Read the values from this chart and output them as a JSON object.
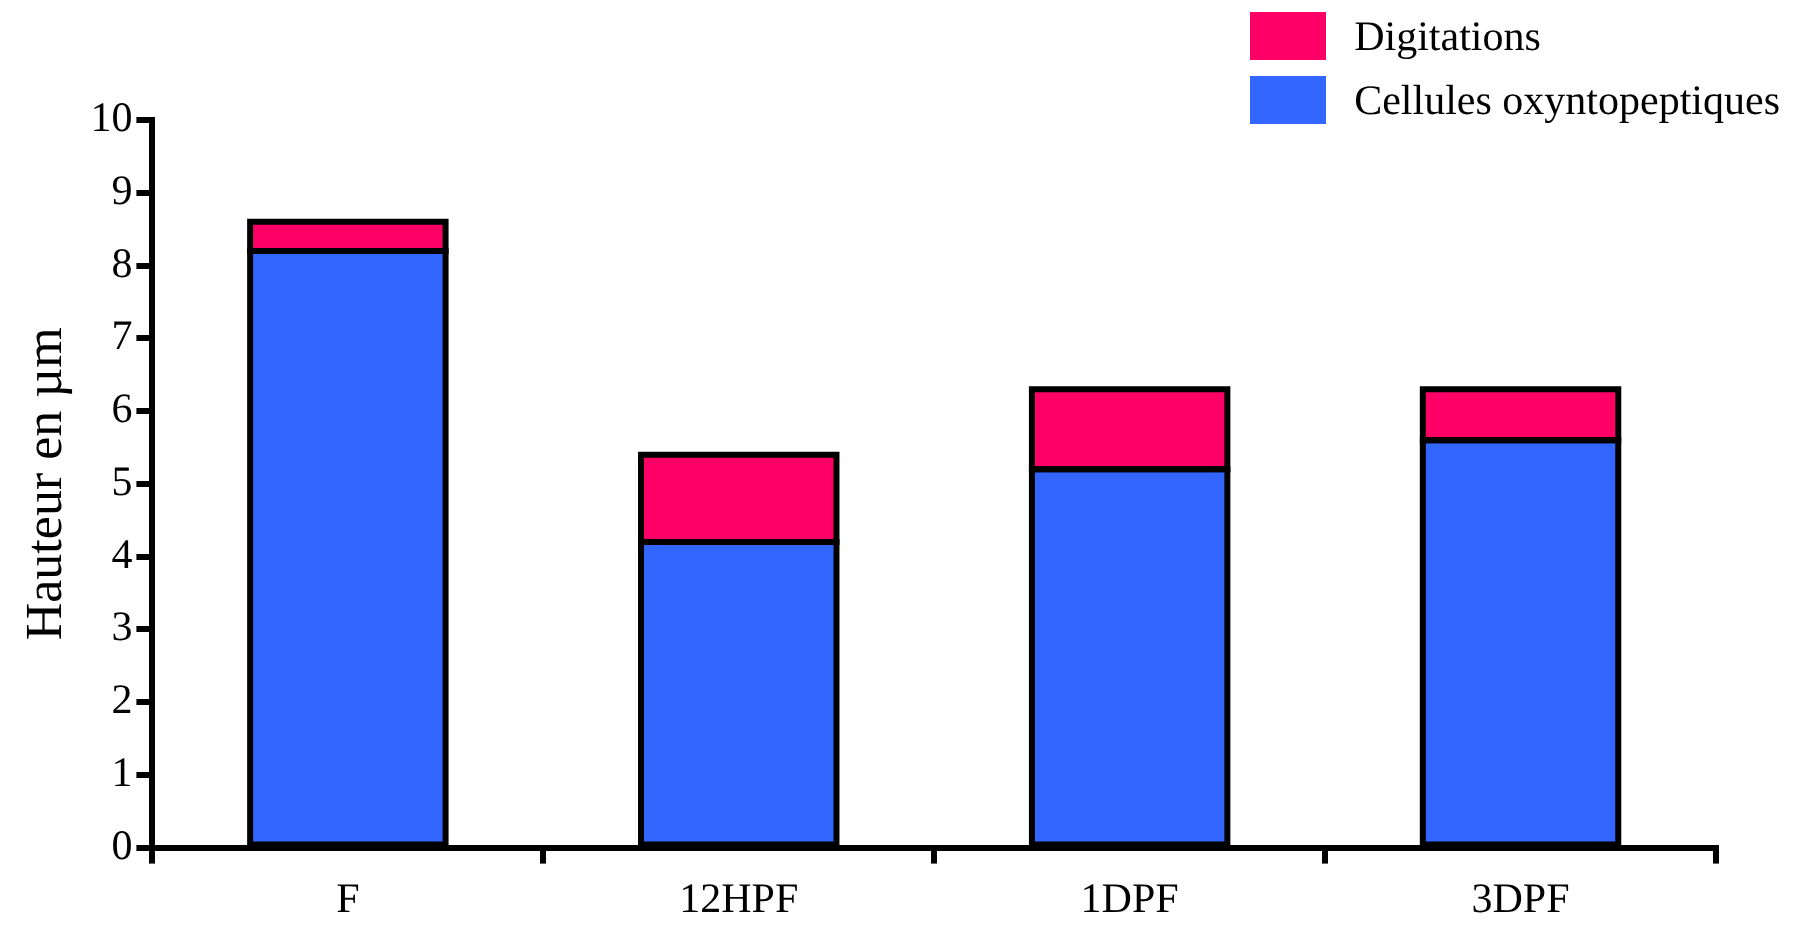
{
  "chart_data": {
    "type": "bar",
    "stacked": true,
    "ylabel": "Hauteur en µm",
    "categories": [
      "F",
      "12HPF",
      "1DPF",
      "3DPF"
    ],
    "series": [
      {
        "name": "Cellules oxyntopeptiques",
        "color": "#3366ff",
        "values": [
          8.2,
          4.2,
          5.2,
          5.6
        ]
      },
      {
        "name": "Digitations",
        "color": "#ff0066",
        "values": [
          0.4,
          1.2,
          1.1,
          0.7
        ]
      }
    ],
    "ylim": [
      0,
      10
    ],
    "yticks": [
      0,
      1,
      2,
      3,
      4,
      5,
      6,
      7,
      8,
      9,
      10
    ],
    "grid": false,
    "legend": "top right"
  }
}
